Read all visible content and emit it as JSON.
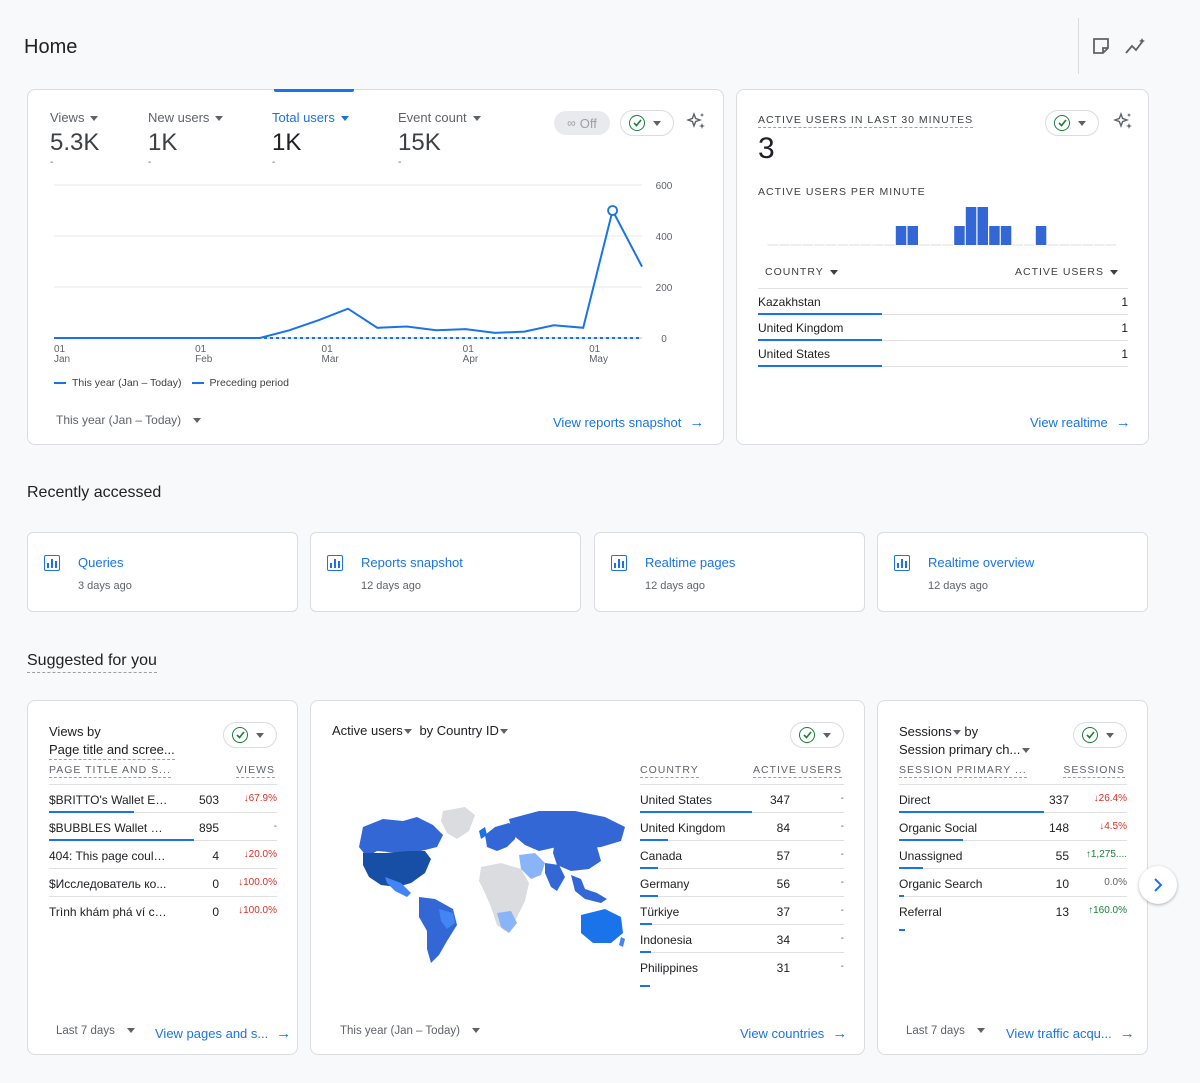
{
  "page": {
    "title": "Home"
  },
  "summary": {
    "metrics": [
      {
        "label": "Views",
        "value": "5.3K",
        "sub": "-"
      },
      {
        "label": "New users",
        "value": "1K",
        "sub": "-"
      },
      {
        "label": "Total users",
        "value": "1K",
        "sub": "-"
      },
      {
        "label": "Event count",
        "value": "15K",
        "sub": "-"
      }
    ],
    "off_label": "Off",
    "legend_current": "This year (Jan – Today)",
    "legend_previous": "Preceding period",
    "date_range": "This year (Jan – Today)",
    "link": "View reports snapshot"
  },
  "chart_data": {
    "type": "line",
    "x_tick_labels": [
      [
        "01",
        "Jan"
      ],
      [
        "01",
        "Feb"
      ],
      [
        "01",
        "Mar"
      ],
      [
        "01",
        "Apr"
      ],
      [
        "01",
        "May"
      ]
    ],
    "y_tick_labels": [
      "600",
      "400",
      "200",
      "0"
    ],
    "ylim": [
      0,
      600
    ],
    "series": [
      {
        "name": "This year (Jan – Today)",
        "values": [
          0,
          0,
          0,
          0,
          0,
          0,
          0,
          0,
          30,
          70,
          115,
          40,
          45,
          30,
          35,
          20,
          25,
          50,
          40,
          500,
          280
        ],
        "color": "#1a73e8"
      },
      {
        "name": "Preceding period",
        "values": [
          0,
          0,
          0,
          0,
          0,
          0,
          0,
          0,
          0,
          0,
          0,
          0,
          0,
          0,
          0,
          0,
          0,
          0,
          0,
          0,
          0
        ],
        "color": "#1a73e8",
        "dashed": true
      }
    ]
  },
  "realtime": {
    "title": "ACTIVE USERS IN LAST 30 MINUTES",
    "value": "3",
    "per_minute_title": "ACTIVE USERS PER MINUTE",
    "per_minute": [
      0,
      0,
      0,
      0,
      0,
      0,
      0,
      0,
      0,
      0,
      0,
      1,
      1,
      0,
      0,
      0,
      1,
      2,
      2,
      1,
      1,
      0,
      0,
      1,
      0,
      0,
      0,
      0,
      0,
      0
    ],
    "col_country": "COUNTRY",
    "col_users": "ACTIVE USERS",
    "rows": [
      {
        "country": "Kazakhstan",
        "users": "1"
      },
      {
        "country": "United Kingdom",
        "users": "1"
      },
      {
        "country": "United States",
        "users": "1"
      }
    ],
    "link": "View realtime"
  },
  "recent": {
    "title": "Recently accessed",
    "items": [
      {
        "label": "Queries",
        "time": "3 days ago"
      },
      {
        "label": "Reports snapshot",
        "time": "12 days ago"
      },
      {
        "label": "Realtime pages",
        "time": "12 days ago"
      },
      {
        "label": "Realtime overview",
        "time": "12 days ago"
      }
    ]
  },
  "suggested": {
    "title": "Suggested for you",
    "card1": {
      "title1": "Views by",
      "title2": "Page title and scree...",
      "col1": "PAGE TITLE AND S...",
      "col2": "VIEWS",
      "rows": [
        {
          "name": "$BRITTO's Wallet Ex...",
          "value": "503",
          "change": "↓67.9%"
        },
        {
          "name": "$BUBBLES Wallet Ex...",
          "value": "895",
          "change": "-"
        },
        {
          "name": "404: This page could...",
          "value": "4",
          "change": "↓20.0%"
        },
        {
          "name": "$Исследователь ко...",
          "value": "0",
          "change": "↓100.0%"
        },
        {
          "name": "Trình khám phá ví cú...",
          "value": "0",
          "change": "↓100.0%"
        }
      ],
      "date_range": "Last 7 days",
      "link": "View pages and s..."
    },
    "card2": {
      "title_metric": "Active users",
      "title_by": "by Country ID",
      "col1": "COUNTRY",
      "col2": "ACTIVE USERS",
      "rows": [
        {
          "name": "United States",
          "value": "347",
          "change": "-"
        },
        {
          "name": "United Kingdom",
          "value": "84",
          "change": "-"
        },
        {
          "name": "Canada",
          "value": "57",
          "change": "-"
        },
        {
          "name": "Germany",
          "value": "56",
          "change": "-"
        },
        {
          "name": "Türkiye",
          "value": "37",
          "change": "-"
        },
        {
          "name": "Indonesia",
          "value": "34",
          "change": "-"
        },
        {
          "name": "Philippines",
          "value": "31",
          "change": "-"
        }
      ],
      "date_range": "This year (Jan – Today)",
      "link": "View countries"
    },
    "card3": {
      "title1": "Sessions",
      "title_by": "by",
      "title2": "Session primary ch...",
      "col1": "SESSION PRIMARY ...",
      "col2": "SESSIONS",
      "rows": [
        {
          "name": "Direct",
          "value": "337",
          "change": "↓26.4%"
        },
        {
          "name": "Organic Social",
          "value": "148",
          "change": "↓4.5%"
        },
        {
          "name": "Unassigned",
          "value": "55",
          "change": "↑1,275...."
        },
        {
          "name": "Organic Search",
          "value": "10",
          "change": "0.0%"
        },
        {
          "name": "Referral",
          "value": "13",
          "change": "↑160.0%"
        }
      ],
      "date_range": "Last 7 days",
      "link": "View traffic acqu..."
    }
  }
}
